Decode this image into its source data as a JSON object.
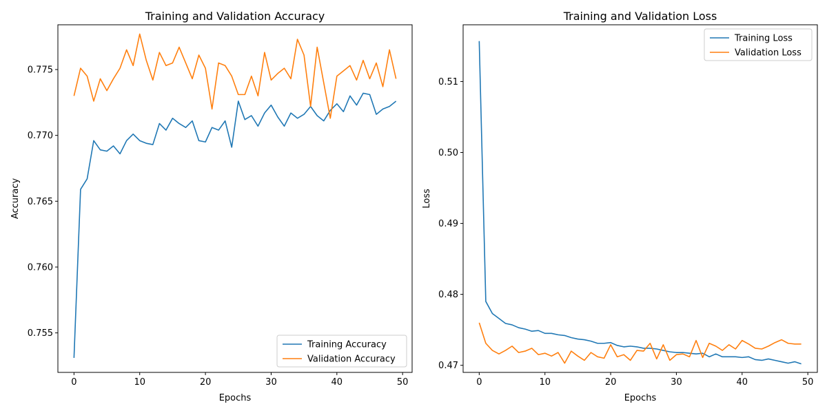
{
  "chart_data": [
    {
      "type": "line",
      "title": "Training and Validation Accuracy",
      "xlabel": "Epochs",
      "ylabel": "Accuracy",
      "xlim": [
        -2.45,
        51.45
      ],
      "ylim": [
        0.752,
        0.7784
      ],
      "xticks": [
        0,
        10,
        20,
        30,
        40,
        50
      ],
      "yticks": [
        0.755,
        0.76,
        0.765,
        0.77,
        0.775
      ],
      "ytick_labels": [
        "0.755",
        "0.760",
        "0.765",
        "0.770",
        "0.775"
      ],
      "legend_position": "lower-right",
      "grid": false,
      "x": [
        0,
        1,
        2,
        3,
        4,
        5,
        6,
        7,
        8,
        9,
        10,
        11,
        12,
        13,
        14,
        15,
        16,
        17,
        18,
        19,
        20,
        21,
        22,
        23,
        24,
        25,
        26,
        27,
        28,
        29,
        30,
        31,
        32,
        33,
        34,
        35,
        36,
        37,
        38,
        39,
        40,
        41,
        42,
        43,
        44,
        45,
        46,
        47,
        48,
        49
      ],
      "series": [
        {
          "name": "Training Accuracy",
          "color": "#1f77b4",
          "values": [
            0.7531,
            0.7659,
            0.7667,
            0.7696,
            0.7689,
            0.7688,
            0.7692,
            0.7686,
            0.7696,
            0.7701,
            0.7696,
            0.7694,
            0.7693,
            0.7709,
            0.7704,
            0.7713,
            0.7709,
            0.7706,
            0.7711,
            0.7696,
            0.7695,
            0.7706,
            0.7704,
            0.7711,
            0.7691,
            0.7726,
            0.7712,
            0.7715,
            0.7707,
            0.7717,
            0.7723,
            0.7714,
            0.7707,
            0.7717,
            0.7713,
            0.7716,
            0.7722,
            0.7715,
            0.7711,
            0.7719,
            0.7724,
            0.7718,
            0.773,
            0.7723,
            0.7732,
            0.7731,
            0.7716,
            0.772,
            0.7722,
            0.7726
          ]
        },
        {
          "name": "Validation Accuracy",
          "color": "#ff7f0e",
          "values": [
            0.773,
            0.7751,
            0.7745,
            0.7726,
            0.7743,
            0.7734,
            0.7743,
            0.7751,
            0.7765,
            0.7753,
            0.7777,
            0.7757,
            0.7742,
            0.7763,
            0.7753,
            0.7755,
            0.7767,
            0.7755,
            0.7743,
            0.7761,
            0.7751,
            0.772,
            0.7755,
            0.7753,
            0.7745,
            0.7731,
            0.7731,
            0.7745,
            0.773,
            0.7763,
            0.7742,
            0.7747,
            0.7751,
            0.7743,
            0.7773,
            0.7761,
            0.7722,
            0.7767,
            0.774,
            0.7713,
            0.7745,
            0.7749,
            0.7753,
            0.7742,
            0.7757,
            0.7743,
            0.7755,
            0.7737,
            0.7765,
            0.7743
          ]
        }
      ]
    },
    {
      "type": "line",
      "title": "Training and Validation Loss",
      "xlabel": "Epochs",
      "ylabel": "Loss",
      "xlim": [
        -2.45,
        51.45
      ],
      "ylim": [
        0.469,
        0.518
      ],
      "xticks": [
        0,
        10,
        20,
        30,
        40,
        50
      ],
      "yticks": [
        0.47,
        0.48,
        0.49,
        0.5,
        0.51
      ],
      "ytick_labels": [
        "0.47",
        "0.48",
        "0.49",
        "0.50",
        "0.51"
      ],
      "legend_position": "top-right",
      "grid": false,
      "x": [
        0,
        1,
        2,
        3,
        4,
        5,
        6,
        7,
        8,
        9,
        10,
        11,
        12,
        13,
        14,
        15,
        16,
        17,
        18,
        19,
        20,
        21,
        22,
        23,
        24,
        25,
        26,
        27,
        28,
        29,
        30,
        31,
        32,
        33,
        34,
        35,
        36,
        37,
        38,
        39,
        40,
        41,
        42,
        43,
        44,
        45,
        46,
        47,
        48,
        49
      ],
      "series": [
        {
          "name": "Training Loss",
          "color": "#1f77b4",
          "values": [
            0.5157,
            0.479,
            0.4773,
            0.4766,
            0.4759,
            0.4757,
            0.4753,
            0.4751,
            0.4748,
            0.4749,
            0.4745,
            0.4745,
            0.4743,
            0.4742,
            0.4739,
            0.4737,
            0.4736,
            0.4734,
            0.4731,
            0.4731,
            0.4732,
            0.4728,
            0.4726,
            0.4727,
            0.4726,
            0.4724,
            0.4724,
            0.4723,
            0.4721,
            0.4719,
            0.4718,
            0.4718,
            0.4717,
            0.4716,
            0.4717,
            0.4712,
            0.4716,
            0.4712,
            0.4712,
            0.4712,
            0.4711,
            0.4712,
            0.4708,
            0.4707,
            0.4709,
            0.4707,
            0.4705,
            0.4703,
            0.4705,
            0.4702
          ]
        },
        {
          "name": "Validation Loss",
          "color": "#ff7f0e",
          "values": [
            0.476,
            0.4731,
            0.4721,
            0.4716,
            0.4721,
            0.4727,
            0.4718,
            0.472,
            0.4724,
            0.4715,
            0.4717,
            0.4713,
            0.4718,
            0.4703,
            0.472,
            0.4713,
            0.4707,
            0.4718,
            0.4712,
            0.471,
            0.4729,
            0.4712,
            0.4715,
            0.4707,
            0.4721,
            0.472,
            0.4731,
            0.4709,
            0.4729,
            0.4707,
            0.4715,
            0.4716,
            0.4712,
            0.4735,
            0.4711,
            0.4731,
            0.4727,
            0.4721,
            0.4729,
            0.4723,
            0.4735,
            0.473,
            0.4724,
            0.4723,
            0.4727,
            0.4732,
            0.4736,
            0.4731,
            0.473,
            0.473
          ]
        }
      ]
    }
  ]
}
